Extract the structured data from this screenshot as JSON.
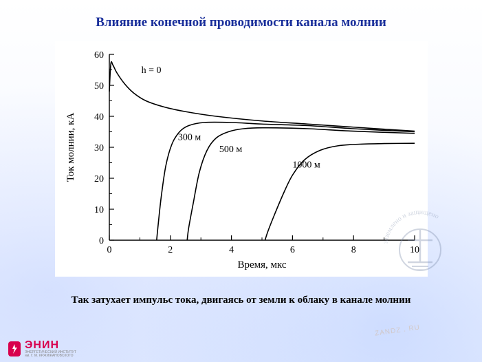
{
  "title": {
    "text": "Влияние конечной проводимости канала молнии",
    "fontsize": 19,
    "weight": "bold",
    "color": "#1a2f9b"
  },
  "caption": {
    "text": "Так затухает импульс тока, двигаясь от земли к облаку в канале молнии",
    "fontsize": 15,
    "weight": "bold",
    "color": "#000000"
  },
  "logo": {
    "brand": "ЭНИН",
    "sub1": "ЭНЕРГЕТИЧЕСКИЙ ИНСТИТУТ",
    "sub2": "им. Г. М. КРЖИЖАНОВСКОГО",
    "brand_fontsize": 16,
    "sub_fontsize": 5,
    "brand_color": "#d8004d"
  },
  "watermark": {
    "arc_text": "заземлено  и  защищено",
    "arc_color": "#7a8aa8",
    "arc_fontsize": 10,
    "ring_color": "#7a8aa8",
    "symbol_color": "#7a8aa8",
    "brand": "ZANDZ . RU"
  },
  "chart": {
    "type": "line",
    "background_color": "#ffffff",
    "axis_color": "#000000",
    "axis_width": 1.4,
    "line_color": "#000000",
    "line_width": 1.6,
    "xlabel": "Время,  мкс",
    "ylabel": "Ток молнии,  кА",
    "label_fontsize": 15,
    "tick_fontsize": 14,
    "xlim": [
      0,
      10
    ],
    "ylim": [
      0,
      60
    ],
    "xticks": [
      0,
      2,
      4,
      6,
      8,
      10
    ],
    "yticks": [
      0,
      10,
      20,
      30,
      40,
      50,
      60
    ],
    "tick_inside": true,
    "minor_xticks": [
      1,
      3,
      5,
      7,
      9
    ],
    "minor_yticks": [
      5,
      15,
      25,
      35,
      45,
      55
    ],
    "series": [
      {
        "label": "h = 0",
        "label_x": 1.05,
        "label_y": 54,
        "points": [
          [
            0.0,
            48
          ],
          [
            0.05,
            57
          ],
          [
            0.12,
            56.5
          ],
          [
            0.25,
            54
          ],
          [
            0.5,
            50.5
          ],
          [
            0.8,
            47.5
          ],
          [
            1.2,
            45
          ],
          [
            1.8,
            43
          ],
          [
            2.5,
            41.5
          ],
          [
            3.5,
            40
          ],
          [
            5,
            38.5
          ],
          [
            6.5,
            37.5
          ],
          [
            8,
            36.5
          ],
          [
            10,
            35.2
          ]
        ]
      },
      {
        "label": "300 м",
        "label_x": 2.25,
        "label_y": 32.3,
        "points": [
          [
            1.55,
            0
          ],
          [
            1.6,
            5
          ],
          [
            1.7,
            14
          ],
          [
            1.85,
            24
          ],
          [
            2.05,
            31
          ],
          [
            2.3,
            35
          ],
          [
            2.6,
            37
          ],
          [
            3.1,
            38
          ],
          [
            4,
            38
          ],
          [
            5,
            37.5
          ],
          [
            6.5,
            37
          ],
          [
            8,
            36
          ],
          [
            10,
            35
          ]
        ]
      },
      {
        "label": "500 м",
        "label_x": 3.6,
        "label_y": 28.5,
        "points": [
          [
            2.55,
            0
          ],
          [
            2.6,
            4
          ],
          [
            2.75,
            12
          ],
          [
            2.95,
            22
          ],
          [
            3.2,
            29
          ],
          [
            3.5,
            33
          ],
          [
            3.9,
            35
          ],
          [
            4.4,
            36
          ],
          [
            5.2,
            36.3
          ],
          [
            6.5,
            36
          ],
          [
            8,
            35.2
          ],
          [
            10,
            34.5
          ]
        ]
      },
      {
        "label": "1000 м",
        "label_x": 6.0,
        "label_y": 23.5,
        "points": [
          [
            5.1,
            0
          ],
          [
            5.2,
            3
          ],
          [
            5.4,
            8
          ],
          [
            5.7,
            15
          ],
          [
            6.0,
            21
          ],
          [
            6.4,
            26
          ],
          [
            6.9,
            29
          ],
          [
            7.5,
            30.5
          ],
          [
            8.2,
            31
          ],
          [
            9,
            31.2
          ],
          [
            10,
            31.3
          ]
        ]
      }
    ]
  }
}
